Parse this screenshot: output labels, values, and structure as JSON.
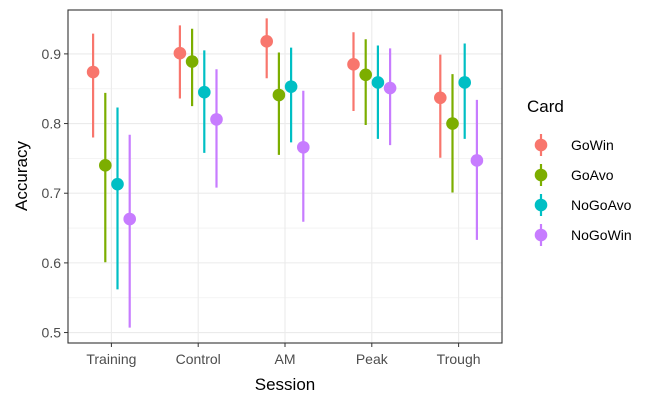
{
  "chart_data": {
    "type": "scatter",
    "xlabel": "Session",
    "ylabel": "Accuracy",
    "ylim": [
      0.485,
      0.963
    ],
    "yticks": [
      0.5,
      0.6,
      0.7,
      0.8,
      0.9
    ],
    "ytick_labels": [
      "0.5",
      "0.6",
      "0.7",
      "0.8",
      "0.9"
    ],
    "categories": [
      "Training",
      "Control",
      "AM",
      "Peak",
      "Trough"
    ],
    "grid": true,
    "legend": {
      "title": "Card",
      "placement": "right"
    },
    "series": [
      {
        "name": "GoWin",
        "color": "#F8766D",
        "values": [
          0.874,
          0.901,
          0.918,
          0.885,
          0.837
        ],
        "lower": [
          0.78,
          0.836,
          0.865,
          0.818,
          0.751
        ],
        "upper": [
          0.929,
          0.941,
          0.951,
          0.931,
          0.899
        ]
      },
      {
        "name": "GoAvo",
        "color": "#7CAE00",
        "values": [
          0.74,
          0.889,
          0.841,
          0.87,
          0.8
        ],
        "lower": [
          0.601,
          0.825,
          0.755,
          0.798,
          0.701
        ],
        "upper": [
          0.844,
          0.936,
          0.902,
          0.921,
          0.871
        ]
      },
      {
        "name": "NoGoAvo",
        "color": "#00BFC4",
        "values": [
          0.713,
          0.845,
          0.853,
          0.859,
          0.859
        ],
        "lower": [
          0.562,
          0.758,
          0.773,
          0.778,
          0.778
        ],
        "upper": [
          0.823,
          0.905,
          0.909,
          0.912,
          0.915
        ]
      },
      {
        "name": "NoGoWin",
        "color": "#C77CFF",
        "values": [
          0.663,
          0.806,
          0.766,
          0.851,
          0.747
        ],
        "lower": [
          0.507,
          0.708,
          0.659,
          0.769,
          0.633
        ],
        "upper": [
          0.784,
          0.878,
          0.847,
          0.908,
          0.834
        ]
      }
    ]
  }
}
